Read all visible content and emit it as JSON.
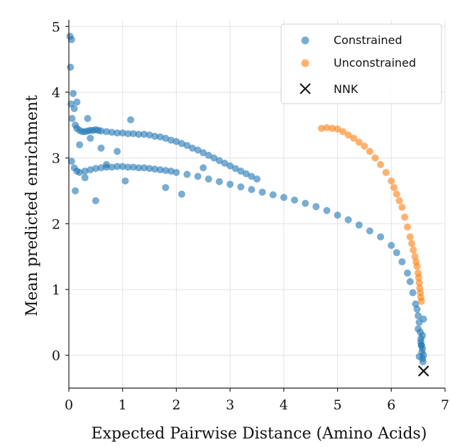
{
  "chart_data": {
    "type": "scatter",
    "title": "",
    "xlabel": "Expected Pairwise Distance (Amino Acids)",
    "ylabel": "Mean predicted enrichment",
    "xlim": [
      0,
      7
    ],
    "ylim": [
      -0.5,
      5.1
    ],
    "xticks": [
      "0",
      "1",
      "2",
      "3",
      "4",
      "5",
      "6",
      "7"
    ],
    "yticks": [
      "0",
      "1",
      "2",
      "3",
      "4",
      "5"
    ],
    "grid": true,
    "legend_position": "top-right",
    "series": [
      {
        "name": "Constrained",
        "color": "#1f77b4",
        "opacity": 0.6,
        "marker": "circle",
        "x": [
          0.02,
          0.05,
          0.03,
          0.08,
          0.04,
          0.1,
          0.06,
          0.12,
          0.15,
          0.2,
          0.25,
          0.3,
          0.35,
          0.4,
          0.45,
          0.5,
          0.55,
          0.6,
          0.7,
          0.8,
          0.9,
          1.0,
          1.1,
          1.2,
          1.3,
          1.4,
          1.5,
          1.6,
          1.7,
          1.8,
          1.9,
          2.0,
          2.1,
          2.2,
          2.3,
          2.4,
          2.5,
          2.6,
          2.7,
          2.8,
          2.9,
          3.0,
          3.1,
          3.2,
          3.3,
          3.4,
          3.5,
          0.05,
          0.1,
          0.15,
          0.2,
          0.3,
          0.4,
          0.5,
          0.6,
          0.7,
          0.8,
          0.9,
          1.0,
          1.1,
          1.2,
          1.3,
          1.4,
          1.5,
          1.6,
          1.7,
          1.8,
          1.9,
          2.0,
          2.2,
          2.4,
          2.6,
          2.8,
          3.0,
          3.2,
          3.4,
          3.6,
          3.8,
          4.0,
          4.2,
          4.4,
          4.6,
          4.8,
          5.0,
          5.2,
          5.4,
          5.6,
          5.8,
          6.0,
          6.1,
          6.2,
          6.3,
          6.35,
          6.4,
          6.45,
          6.5,
          6.52,
          6.54,
          6.55,
          6.56,
          6.57,
          6.58,
          6.58,
          6.59,
          0.15,
          0.35,
          1.15,
          0.12,
          0.5,
          0.7,
          1.05,
          1.8,
          2.1,
          2.5,
          0.2,
          0.4,
          0.3,
          0.6,
          0.9,
          6.5,
          6.55,
          6.6,
          6.48,
          6.58,
          6.52,
          6.6,
          6.56
        ],
        "y": [
          4.85,
          4.8,
          4.38,
          3.98,
          3.82,
          3.75,
          3.6,
          3.5,
          3.45,
          3.42,
          3.4,
          3.4,
          3.41,
          3.42,
          3.42,
          3.43,
          3.42,
          3.41,
          3.4,
          3.39,
          3.38,
          3.38,
          3.37,
          3.37,
          3.36,
          3.36,
          3.35,
          3.33,
          3.32,
          3.3,
          3.27,
          3.25,
          3.22,
          3.19,
          3.15,
          3.12,
          3.08,
          3.04,
          3.0,
          2.96,
          2.92,
          2.88,
          2.84,
          2.8,
          2.76,
          2.72,
          2.68,
          2.95,
          2.85,
          2.8,
          2.78,
          2.8,
          2.82,
          2.84,
          2.85,
          2.86,
          2.86,
          2.87,
          2.87,
          2.86,
          2.86,
          2.85,
          2.85,
          2.84,
          2.83,
          2.82,
          2.81,
          2.8,
          2.78,
          2.75,
          2.72,
          2.68,
          2.64,
          2.6,
          2.56,
          2.52,
          2.48,
          2.44,
          2.4,
          2.36,
          2.31,
          2.26,
          2.2,
          2.13,
          2.06,
          1.98,
          1.89,
          1.8,
          1.67,
          1.56,
          1.42,
          1.25,
          1.12,
          0.95,
          0.78,
          0.6,
          0.5,
          0.35,
          0.25,
          0.15,
          0.05,
          -0.05,
          0.1,
          -0.1,
          3.85,
          3.6,
          3.58,
          2.5,
          2.35,
          2.9,
          2.65,
          2.55,
          2.45,
          2.85,
          3.2,
          3.3,
          2.7,
          3.15,
          3.1,
          0.4,
          0.2,
          0.0,
          0.7,
          0.3,
          -0.02,
          0.55,
          0.15
        ]
      },
      {
        "name": "Unconstrained",
        "color": "#ff7f0e",
        "opacity": 0.6,
        "marker": "circle",
        "x": [
          4.7,
          4.8,
          4.9,
          5.0,
          5.1,
          5.2,
          5.3,
          5.4,
          5.5,
          5.6,
          5.7,
          5.8,
          5.9,
          6.0,
          6.05,
          6.1,
          6.15,
          6.2,
          6.25,
          6.3,
          6.35,
          6.38,
          6.41,
          6.44,
          6.46,
          6.48,
          6.5,
          6.51,
          6.52,
          6.53,
          6.54,
          6.55,
          6.56
        ],
        "y": [
          3.45,
          3.46,
          3.45,
          3.44,
          3.4,
          3.35,
          3.3,
          3.24,
          3.18,
          3.1,
          3.0,
          2.9,
          2.78,
          2.65,
          2.55,
          2.45,
          2.35,
          2.25,
          2.1,
          1.95,
          1.8,
          1.7,
          1.6,
          1.5,
          1.42,
          1.35,
          1.25,
          1.18,
          1.1,
          1.02,
          0.95,
          0.88,
          0.82
        ]
      },
      {
        "name": "NNK",
        "color": "#111111",
        "marker": "x",
        "x": [
          6.6
        ],
        "y": [
          -0.24
        ]
      }
    ]
  }
}
